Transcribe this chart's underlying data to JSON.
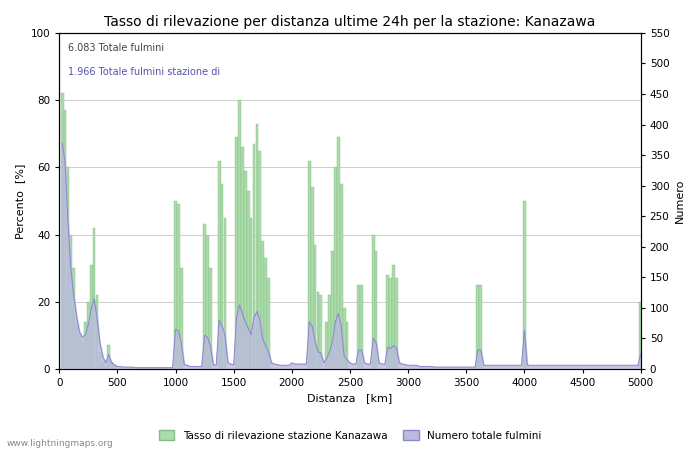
{
  "title": "Tasso di rilevazione per distanza ultime 24h per la stazione: Kanazawa",
  "xlabel": "Distanza   [km]",
  "ylabel_left": "Percento  [%]",
  "ylabel_right": "Numero",
  "annotation_line1": "6.083 Totale fulmini",
  "annotation_line2": "1.966 Totale fulmini stazione di",
  "xlim": [
    0,
    5000
  ],
  "ylim_left": [
    0,
    100
  ],
  "ylim_right": [
    0,
    550
  ],
  "xticks": [
    0,
    500,
    1000,
    1500,
    2000,
    2500,
    3000,
    3500,
    4000,
    4500,
    5000
  ],
  "yticks_left": [
    0,
    20,
    40,
    60,
    80,
    100
  ],
  "yticks_right": [
    0,
    50,
    100,
    150,
    200,
    250,
    300,
    350,
    400,
    450,
    500,
    550
  ],
  "legend_label_green": "Tasso di rilevazione stazione Kanazawa",
  "legend_label_blue": "Numero totale fulmini",
  "watermark": "www.lightningmaps.org",
  "bar_color": "#aaddaa",
  "bar_edge_color": "#88bb88",
  "line_color": "#8888cc",
  "line_fill_color": "#bbbbdd",
  "bg_color": "#FFFFFF",
  "grid_color": "#BBBBBB",
  "title_fontsize": 10,
  "axis_fontsize": 8,
  "tick_fontsize": 7.5,
  "annotation1_color": "#444444",
  "annotation2_color": "#5555AA",
  "distances": [
    25,
    50,
    75,
    100,
    125,
    150,
    175,
    200,
    225,
    250,
    275,
    300,
    325,
    350,
    375,
    400,
    425,
    450,
    475,
    500,
    525,
    550,
    575,
    600,
    625,
    650,
    675,
    700,
    725,
    750,
    775,
    800,
    825,
    850,
    875,
    900,
    925,
    950,
    975,
    1000,
    1025,
    1050,
    1075,
    1100,
    1125,
    1150,
    1175,
    1200,
    1225,
    1250,
    1275,
    1300,
    1325,
    1350,
    1375,
    1400,
    1425,
    1450,
    1475,
    1500,
    1525,
    1550,
    1575,
    1600,
    1625,
    1650,
    1675,
    1700,
    1725,
    1750,
    1775,
    1800,
    1825,
    1850,
    1875,
    1900,
    1925,
    1950,
    1975,
    2000,
    2025,
    2050,
    2075,
    2100,
    2125,
    2150,
    2175,
    2200,
    2225,
    2250,
    2275,
    2300,
    2325,
    2350,
    2375,
    2400,
    2425,
    2450,
    2475,
    2500,
    2525,
    2550,
    2575,
    2600,
    2625,
    2650,
    2675,
    2700,
    2725,
    2750,
    2775,
    2800,
    2825,
    2850,
    2875,
    2900,
    2925,
    2950,
    2975,
    3000,
    3025,
    3050,
    3075,
    3100,
    3125,
    3150,
    3175,
    3200,
    3225,
    3250,
    3275,
    3300,
    3325,
    3350,
    3375,
    3400,
    3425,
    3450,
    3475,
    3500,
    3525,
    3550,
    3575,
    3600,
    3625,
    3650,
    3675,
    3700,
    3725,
    3750,
    3775,
    3800,
    3825,
    3850,
    3875,
    3900,
    3925,
    3950,
    3975,
    4000,
    4025,
    4050,
    4075,
    4100,
    4125,
    4150,
    4175,
    4200,
    4225,
    4250,
    4275,
    4300,
    4325,
    4350,
    4375,
    4400,
    4425,
    4450,
    4475,
    4500,
    4525,
    4550,
    4575,
    4600,
    4625,
    4650,
    4675,
    4700,
    4725,
    4750,
    4775,
    4800,
    4825,
    4850,
    4875,
    4900,
    4925,
    4950,
    4975,
    5000
  ],
  "detection_rate": [
    82,
    77,
    60,
    40,
    30,
    13,
    10,
    8,
    14,
    20,
    31,
    42,
    22,
    5,
    2,
    1,
    7,
    2,
    1,
    0,
    0,
    0,
    0,
    0,
    0,
    0,
    0,
    0,
    0,
    0,
    0,
    0,
    0,
    0,
    0,
    0,
    0,
    0,
    0,
    50,
    49,
    30,
    0,
    0,
    0,
    0,
    0,
    0,
    0,
    43,
    40,
    30,
    0,
    0,
    62,
    55,
    45,
    0,
    0,
    0,
    69,
    80,
    66,
    59,
    53,
    45,
    67,
    73,
    65,
    38,
    33,
    27,
    0,
    0,
    0,
    0,
    0,
    0,
    0,
    0,
    0,
    0,
    0,
    0,
    0,
    62,
    54,
    37,
    23,
    22,
    0,
    14,
    22,
    35,
    60,
    69,
    55,
    18,
    14,
    0,
    0,
    0,
    25,
    25,
    0,
    0,
    0,
    40,
    35,
    0,
    0,
    0,
    28,
    27,
    31,
    27,
    0,
    0,
    0,
    0,
    0,
    0,
    0,
    0,
    0,
    0,
    0,
    0,
    0,
    0,
    0,
    0,
    0,
    0,
    0,
    0,
    0,
    0,
    0,
    0,
    0,
    0,
    0,
    25,
    25,
    0,
    0,
    0,
    0,
    0,
    0,
    0,
    0,
    0,
    0,
    0,
    0,
    0,
    0,
    50,
    0,
    0,
    0,
    0,
    0,
    0,
    0,
    0,
    0,
    0,
    0,
    0,
    0,
    0,
    0,
    0,
    0,
    0,
    0,
    0,
    0,
    0,
    0,
    0,
    0,
    0,
    0,
    0,
    0,
    0,
    0,
    0,
    0,
    0,
    0,
    0,
    0,
    0,
    0,
    20
  ],
  "total_lightning": [
    370,
    340,
    240,
    165,
    120,
    85,
    60,
    52,
    56,
    72,
    98,
    115,
    84,
    42,
    20,
    10,
    24,
    10,
    7,
    4,
    4,
    3,
    3,
    3,
    3,
    2,
    2,
    2,
    2,
    2,
    2,
    2,
    2,
    2,
    2,
    2,
    2,
    2,
    2,
    65,
    62,
    42,
    7,
    6,
    4,
    4,
    4,
    4,
    4,
    55,
    52,
    38,
    7,
    6,
    80,
    70,
    56,
    10,
    8,
    7,
    84,
    105,
    91,
    77,
    67,
    56,
    84,
    94,
    80,
    49,
    38,
    28,
    10,
    8,
    7,
    6,
    6,
    6,
    6,
    10,
    8,
    8,
    8,
    8,
    8,
    77,
    70,
    45,
    28,
    26,
    10,
    17,
    28,
    45,
    77,
    91,
    70,
    21,
    15,
    10,
    8,
    8,
    31,
    31,
    10,
    8,
    8,
    50,
    43,
    10,
    8,
    8,
    35,
    34,
    38,
    34,
    10,
    8,
    7,
    6,
    6,
    6,
    6,
    4,
    4,
    4,
    4,
    4,
    3,
    3,
    3,
    3,
    3,
    3,
    3,
    3,
    3,
    3,
    3,
    3,
    3,
    3,
    3,
    31,
    31,
    6,
    6,
    6,
    6,
    6,
    6,
    6,
    6,
    6,
    6,
    6,
    6,
    6,
    6,
    63,
    6,
    6,
    6,
    6,
    6,
    6,
    6,
    6,
    6,
    6,
    6,
    6,
    6,
    6,
    6,
    6,
    6,
    6,
    6,
    6,
    6,
    6,
    6,
    6,
    6,
    6,
    6,
    6,
    6,
    6,
    6,
    6,
    6,
    6,
    6,
    6,
    6,
    6,
    6,
    24
  ]
}
